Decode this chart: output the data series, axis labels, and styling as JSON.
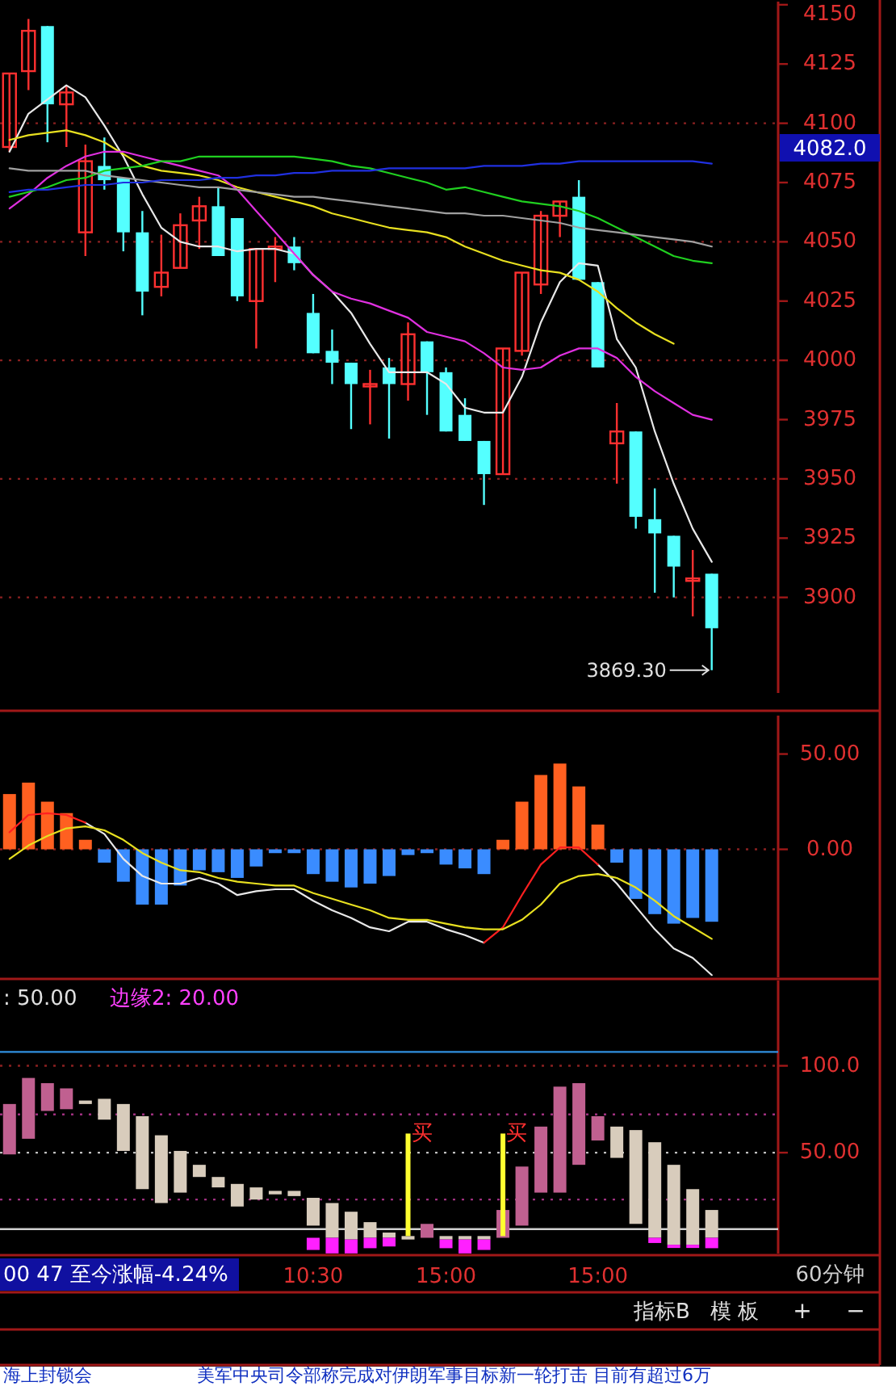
{
  "chart_data": [
    {
      "type": "candlestick",
      "tick_labels": "y",
      "categories": [
        null,
        null,
        null,
        null,
        null,
        null,
        null,
        null,
        null,
        null,
        null,
        null,
        null,
        null,
        null,
        null,
        null,
        null,
        null,
        null,
        null,
        null,
        null,
        null,
        null,
        null,
        null,
        null,
        null,
        null,
        null,
        null,
        null,
        null,
        null,
        null,
        null,
        null,
        null,
        null,
        null
      ],
      "ohlc": [
        [
          4090,
          4121,
          4088,
          4121
        ],
        [
          4122,
          4144,
          4114,
          4139
        ],
        [
          4141,
          4141,
          4092,
          4108
        ],
        [
          4108,
          4116,
          4090,
          4113
        ],
        [
          4054,
          4091,
          4044,
          4084
        ],
        [
          4082,
          4094,
          4072,
          4076
        ],
        [
          4077,
          4077,
          4046,
          4054
        ],
        [
          4054,
          4063,
          4019,
          4029
        ],
        [
          4031,
          4053,
          4027,
          4037
        ],
        [
          4039,
          4062,
          4039,
          4057
        ],
        [
          4059,
          4069,
          4047,
          4065
        ],
        [
          4065,
          4073,
          4044,
          4044
        ],
        [
          4060,
          4060,
          4025,
          4027
        ],
        [
          4025,
          4047,
          4005,
          4047
        ],
        [
          4047,
          4052,
          4033,
          4048
        ],
        [
          4048,
          4052,
          4038,
          4041
        ],
        [
          4020,
          4028,
          4003,
          4003
        ],
        [
          4004,
          4013,
          3990,
          3999
        ],
        [
          3999,
          3999,
          3971,
          3990
        ],
        [
          3989,
          3996,
          3973,
          3990
        ],
        [
          3997,
          4001,
          3967,
          3990
        ],
        [
          3990,
          4016,
          3983,
          4011
        ],
        [
          4008,
          4008,
          3977,
          3995
        ],
        [
          3995,
          3997,
          3970,
          3970
        ],
        [
          3977,
          3984,
          3966,
          3966
        ],
        [
          3966,
          3966,
          3939,
          3952
        ],
        [
          3952,
          4005,
          3952,
          4005
        ],
        [
          4004,
          4037,
          4002,
          4037
        ],
        [
          4032,
          4063,
          4028,
          4061
        ],
        [
          4061,
          4067,
          4052,
          4067
        ],
        [
          4069,
          4076,
          4034,
          4034
        ],
        [
          4033,
          4033,
          3997,
          3997
        ],
        [
          3965,
          3982,
          3948,
          3970
        ],
        [
          3970,
          3970,
          3929,
          3934
        ],
        [
          3933,
          3946,
          3902,
          3927
        ],
        [
          3926,
          3926,
          3900,
          3913
        ],
        [
          3907,
          3920,
          3892,
          3908
        ],
        [
          3910,
          3910,
          3869.3,
          3887
        ],
        null,
        null,
        null
      ],
      "colors": [
        "#ff3030",
        "#ff3030",
        "#54ffff",
        "#ff3030",
        "#ff3030",
        "#54ffff",
        "#54ffff",
        "#54ffff",
        "#ff3030",
        "#ff3030",
        "#ff3030",
        "#54ffff",
        "#54ffff",
        "#ff3030",
        "#ff3030",
        "#54ffff",
        "#54ffff",
        "#54ffff",
        "#54ffff",
        "#ff3030",
        "#54ffff",
        "#ff3030",
        "#54ffff",
        "#54ffff",
        "#54ffff",
        "#54ffff",
        "#ff3030",
        "#ff3030",
        "#ff3030",
        "#ff3030",
        "#54ffff",
        "#54ffff",
        "#ff3030",
        "#54ffff",
        "#54ffff",
        "#54ffff",
        "#ff3030",
        "#54ffff",
        null,
        null,
        null
      ],
      "series": [
        {
          "type": "line",
          "color": "#e8e8e8",
          "values": [
            4088,
            4104,
            4110,
            4116,
            4111,
            4099,
            4086,
            4070,
            4056,
            4050,
            4048,
            4048,
            4046,
            4047,
            4047,
            4045,
            4036,
            4029,
            4020,
            4007,
            3995,
            3995,
            3995,
            3990,
            3980,
            3978,
            3978,
            3993,
            4016,
            4033,
            4041,
            4040,
            4009,
            3997,
            3970,
            3948,
            3929,
            3915,
            null,
            null,
            null
          ]
        },
        {
          "type": "line",
          "color": "#e8e020",
          "values": [
            4093,
            4095,
            4096,
            4097,
            4095,
            4092,
            4087,
            4082,
            4080,
            4079,
            4078,
            4076,
            4073,
            4071,
            4069,
            4067,
            4065,
            4062,
            4060,
            4058,
            4056,
            4055,
            4054,
            4052,
            4048,
            4045,
            4042,
            4040,
            4038,
            4037,
            4034,
            4029,
            4022,
            4016,
            4011,
            4007,
            null,
            null,
            null,
            null,
            null
          ]
        },
        {
          "type": "line",
          "color": "#e030e0",
          "values": [
            4064,
            4070,
            4077,
            4082,
            4086,
            4088,
            4088,
            4086,
            4084,
            4082,
            4080,
            4078,
            4072,
            4063,
            4054,
            4045,
            4036,
            4029,
            4026,
            4024,
            4021,
            4018,
            4012,
            4010,
            4008,
            4003,
            3997,
            3996,
            3997,
            4002,
            4005,
            4005,
            4001,
            3993,
            3987,
            3982,
            3977,
            3975,
            null,
            null,
            null
          ]
        },
        {
          "type": "line",
          "color": "#20d020",
          "values": [
            4069,
            4071,
            4073,
            4076,
            4077,
            4080,
            4081,
            4082,
            4084,
            4084,
            4086,
            4086,
            4086,
            4086,
            4086,
            4086,
            4085,
            4084,
            4082,
            4081,
            4079,
            4077,
            4075,
            4072,
            4073,
            4071,
            4069,
            4067,
            4066,
            4065,
            4063,
            4060,
            4056,
            4052,
            4048,
            4044,
            4042,
            4041,
            null,
            null,
            null
          ]
        },
        {
          "type": "line",
          "color": "#a0a0a0",
          "values": [
            4081,
            4080,
            4080,
            4080,
            4080,
            4078,
            4077,
            4076,
            4075,
            4074,
            4073,
            4073,
            4072,
            4071,
            4070,
            4069,
            4069,
            4068,
            4067,
            4066,
            4065,
            4064,
            4063,
            4062,
            4062,
            4061,
            4061,
            4060,
            4059,
            4058,
            4056,
            4055,
            4054,
            4053,
            4052,
            4051,
            4050,
            4048,
            null,
            null,
            null
          ]
        },
        {
          "type": "line",
          "color": "#2030e0",
          "values": [
            4071,
            4072,
            4072,
            4073,
            4074,
            4074,
            4075,
            4075,
            4076,
            4076,
            4076,
            4077,
            4077,
            4078,
            4078,
            4079,
            4079,
            4080,
            4080,
            4080,
            4081,
            4081,
            4081,
            4081,
            4081,
            4082,
            4082,
            4082,
            4083,
            4083,
            4084,
            4084,
            4084,
            4084,
            4084,
            4084,
            4084,
            4083,
            null,
            null,
            null
          ]
        }
      ],
      "ylim": [
        3859,
        4152
      ],
      "yticks": [
        3900,
        3925,
        3950,
        3975,
        4000,
        4025,
        4050,
        4075,
        4100,
        4125,
        4150
      ],
      "ref_lines": [
        {
          "axis": "y",
          "value": 3900,
          "line_style": "dotted",
          "color": "#8a2020"
        },
        {
          "axis": "y",
          "value": 3950,
          "line_style": "dotted",
          "color": "#8a2020"
        },
        {
          "axis": "y",
          "value": 4000,
          "line_style": "dotted",
          "color": "#8a2020"
        },
        {
          "axis": "y",
          "value": 4050,
          "line_style": "dotted",
          "color": "#8a2020"
        },
        {
          "axis": "y",
          "value": 4100,
          "line_style": "dotted",
          "color": "#8a2020"
        }
      ],
      "annotations": [
        "3869.30",
        "4082.0"
      ]
    },
    {
      "type": "bar",
      "tick_labels": "y",
      "categories": [
        null,
        null,
        null,
        null,
        null,
        null,
        null,
        null,
        null,
        null,
        null,
        null,
        null,
        null,
        null,
        null,
        null,
        null,
        null,
        null,
        null,
        null,
        null,
        null,
        null,
        null,
        null,
        null,
        null,
        null,
        null,
        null,
        null,
        null,
        null,
        null,
        null,
        null,
        null,
        null,
        null
      ],
      "series": [
        {
          "type": "bar",
          "values": [
            29,
            35,
            25,
            19,
            5,
            -7,
            -17,
            -29,
            -29,
            -19,
            -11,
            -12,
            -15,
            -9,
            -2,
            -2,
            -13,
            -17,
            -20,
            -18,
            -14,
            -3,
            -2,
            -8,
            -10,
            -13,
            5,
            25,
            39,
            45,
            33,
            13,
            -7,
            -26,
            -34,
            -39,
            -36,
            -38,
            null,
            null,
            null
          ],
          "colors": [
            "#ff6020",
            "#ff6020",
            "#ff6020",
            "#ff6020",
            "#ff6020",
            "#3a8cff",
            "#3a8cff",
            "#3a8cff",
            "#3a8cff",
            "#3a8cff",
            "#3a8cff",
            "#3a8cff",
            "#3a8cff",
            "#3a8cff",
            "#3a8cff",
            "#3a8cff",
            "#3a8cff",
            "#3a8cff",
            "#3a8cff",
            "#3a8cff",
            "#3a8cff",
            "#3a8cff",
            "#3a8cff",
            "#3a8cff",
            "#3a8cff",
            "#3a8cff",
            "#ff6020",
            "#ff6020",
            "#ff6020",
            "#ff6020",
            "#ff6020",
            "#ff6020",
            "#3a8cff",
            "#3a8cff",
            "#3a8cff",
            "#3a8cff",
            "#3a8cff",
            "#3a8cff",
            null,
            null,
            null
          ]
        },
        {
          "type": "line",
          "color": "#e8e8e8",
          "values": [
            null,
            null,
            null,
            null,
            14,
            8,
            -5,
            -14,
            -18,
            -18,
            -15,
            -18,
            -24,
            -22,
            -21,
            -21,
            -27,
            -32,
            -36,
            -41,
            -43,
            -38,
            -38,
            -42,
            -45,
            -49,
            null,
            null,
            null,
            null,
            null,
            -8,
            -18,
            -30,
            -42,
            -52,
            -57,
            -66,
            null,
            null,
            null
          ]
        },
        {
          "type": "line",
          "color": "#ff2020",
          "values": [
            9,
            18,
            19,
            18,
            14,
            null,
            null,
            null,
            null,
            null,
            null,
            null,
            null,
            null,
            null,
            null,
            null,
            null,
            null,
            null,
            null,
            null,
            null,
            null,
            null,
            -49,
            -41,
            -24,
            -8,
            1,
            1,
            -8,
            null,
            null,
            null,
            null,
            null,
            null,
            null,
            null,
            null
          ]
        },
        {
          "type": "line",
          "color": "#e8e020",
          "values": [
            -5,
            2,
            7,
            11,
            12,
            10,
            5,
            -2,
            -7,
            -11,
            -12,
            -15,
            -17,
            -18,
            -19,
            -19,
            -23,
            -26,
            -29,
            -32,
            -36,
            -37,
            -37,
            -39,
            -41,
            -42,
            -42,
            -37,
            -29,
            -18,
            -14,
            -13,
            -15,
            -20,
            -27,
            -35,
            -41,
            -47,
            null,
            null,
            null
          ]
        }
      ],
      "ylim": [
        -68,
        71
      ],
      "yticks": [
        {
          "value": 0,
          "label": "0.00"
        },
        {
          "value": 50,
          "label": "50.00"
        }
      ],
      "ref_lines": [
        {
          "axis": "y",
          "value": 0,
          "line_style": "dotted",
          "color": "#8a2020"
        }
      ]
    },
    {
      "type": "bar",
      "categories": [
        null,
        null,
        null,
        null,
        null,
        null,
        null,
        null,
        null,
        null,
        null,
        null,
        null,
        null,
        null,
        null,
        "10:30",
        null,
        null,
        null,
        null,
        null,
        null,
        "15:00",
        null,
        null,
        null,
        null,
        null,
        null,
        null,
        "15:00",
        null,
        null,
        null,
        null,
        null,
        null,
        null,
        null,
        null
      ],
      "series": [
        {
          "type": "bar",
          "color": "#c06090",
          "base": [
            49,
            58,
            74,
            75,
            null,
            null,
            null,
            null,
            null,
            null,
            null,
            null,
            null,
            null,
            null,
            null,
            null,
            null,
            null,
            null,
            null,
            null,
            1,
            null,
            null,
            null,
            1,
            8,
            27,
            27,
            43,
            57,
            null,
            null,
            null,
            null,
            null,
            null,
            null,
            null,
            null
          ],
          "values": [
            29,
            35,
            16,
            12,
            null,
            null,
            null,
            null,
            null,
            null,
            null,
            null,
            null,
            null,
            null,
            null,
            null,
            null,
            null,
            null,
            null,
            null,
            8,
            null,
            null,
            null,
            16,
            34,
            38,
            61,
            47,
            14,
            null,
            null,
            null,
            null,
            null,
            null,
            null,
            null,
            null
          ]
        },
        {
          "type": "bar",
          "color": "#d8ccbc",
          "base": [
            null,
            null,
            null,
            null,
            78,
            69,
            51,
            29,
            21,
            27,
            36,
            30,
            19,
            23,
            26,
            25,
            8,
            1,
            0,
            1,
            1,
            0,
            null,
            0,
            0,
            0,
            null,
            null,
            null,
            null,
            null,
            null,
            47,
            9,
            1,
            -3,
            -3,
            1,
            null,
            null,
            null
          ],
          "values": [
            null,
            null,
            null,
            null,
            2,
            12,
            27,
            42,
            39,
            24,
            7,
            6,
            13,
            7,
            2,
            3,
            16,
            20,
            16,
            9,
            3,
            2,
            null,
            2,
            2,
            2,
            null,
            null,
            null,
            null,
            null,
            null,
            18,
            54,
            55,
            46,
            32,
            16,
            null,
            null,
            null
          ]
        },
        {
          "type": "bar",
          "color": "#ff20ff",
          "base": [
            null,
            null,
            null,
            null,
            null,
            null,
            null,
            null,
            null,
            null,
            null,
            null,
            null,
            null,
            null,
            null,
            -6,
            -8,
            -8,
            -5,
            -4,
            null,
            null,
            -5,
            -8,
            -6,
            null,
            null,
            null,
            null,
            null,
            null,
            null,
            null,
            -2,
            -4,
            -4,
            -5,
            null,
            null,
            null
          ],
          "values": [
            null,
            null,
            null,
            null,
            null,
            null,
            null,
            null,
            null,
            null,
            null,
            null,
            null,
            null,
            null,
            null,
            7,
            9,
            8,
            6,
            5,
            null,
            null,
            5,
            8,
            6,
            null,
            null,
            null,
            null,
            null,
            null,
            null,
            null,
            3,
            1,
            1,
            6,
            null,
            null,
            null
          ]
        },
        {
          "type": "bar",
          "color": "#ffff30",
          "base": [
            null,
            null,
            null,
            null,
            null,
            null,
            null,
            null,
            null,
            null,
            null,
            null,
            null,
            null,
            null,
            null,
            null,
            null,
            null,
            null,
            null,
            2,
            null,
            null,
            null,
            null,
            2,
            null,
            null,
            null,
            null,
            null,
            null,
            null,
            null,
            null,
            null,
            null,
            null,
            null,
            null
          ],
          "values": [
            null,
            null,
            null,
            null,
            null,
            null,
            null,
            null,
            null,
            null,
            null,
            null,
            null,
            null,
            null,
            null,
            null,
            null,
            null,
            null,
            null,
            59,
            null,
            null,
            null,
            null,
            59,
            null,
            null,
            null,
            null,
            null,
            null,
            null,
            null,
            null,
            null,
            null,
            null,
            null,
            null
          ],
          "value_labels": [
            null,
            null,
            null,
            null,
            null,
            null,
            null,
            null,
            null,
            null,
            null,
            null,
            null,
            null,
            null,
            null,
            null,
            null,
            null,
            null,
            null,
            "买",
            null,
            null,
            null,
            null,
            "买",
            null,
            null,
            null,
            null,
            null,
            null,
            null,
            null,
            null,
            null,
            null,
            null,
            null,
            null
          ]
        }
      ],
      "ylim": [
        -9,
        150
      ],
      "yticks": [
        {
          "value": 50,
          "label": "50.00"
        },
        {
          "value": 100,
          "label": "100.0"
        }
      ],
      "ref_lines": [
        {
          "axis": "y",
          "value": 108,
          "color": "#3090e0"
        },
        {
          "axis": "y",
          "value": 6,
          "color": "#d0d0d0"
        },
        {
          "axis": "y",
          "value": 100,
          "line_style": "dotted",
          "color": "#8a2020"
        },
        {
          "axis": "y",
          "value": 72,
          "line_style": "dotted",
          "color": "#a03080"
        },
        {
          "axis": "y",
          "value": 50,
          "line_style": "dotted",
          "color": "#c0c0c0"
        },
        {
          "axis": "y",
          "value": 23,
          "line_style": "dotted",
          "color": "#a03080"
        }
      ],
      "annotations": [
        ": 50.00",
        "边缘2: 20.00"
      ]
    },
    {
      "type": "other",
      "annotations": [
        "00 47 至今涨幅-4.24%",
        "60分钟",
        "指标B",
        "模 板",
        "+",
        "−",
        "海上封锁会",
        "美军中央司令部称完成对伊朗军事目标新一轮打击 目前有超过6万"
      ]
    }
  ]
}
